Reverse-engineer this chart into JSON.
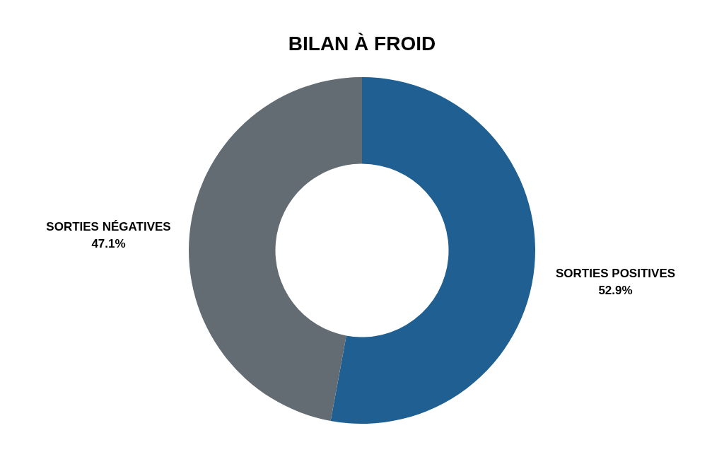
{
  "chart_data": {
    "type": "donut",
    "title": "BILAN À FROID",
    "categories": [
      "SORTIES POSITIVES",
      "SORTIES NÉGATIVES"
    ],
    "values": [
      52.9,
      47.1
    ],
    "value_labels": [
      "52.9%",
      "47.1%"
    ],
    "colors": [
      "#1f5f91",
      "#636c72"
    ],
    "legend": false
  }
}
